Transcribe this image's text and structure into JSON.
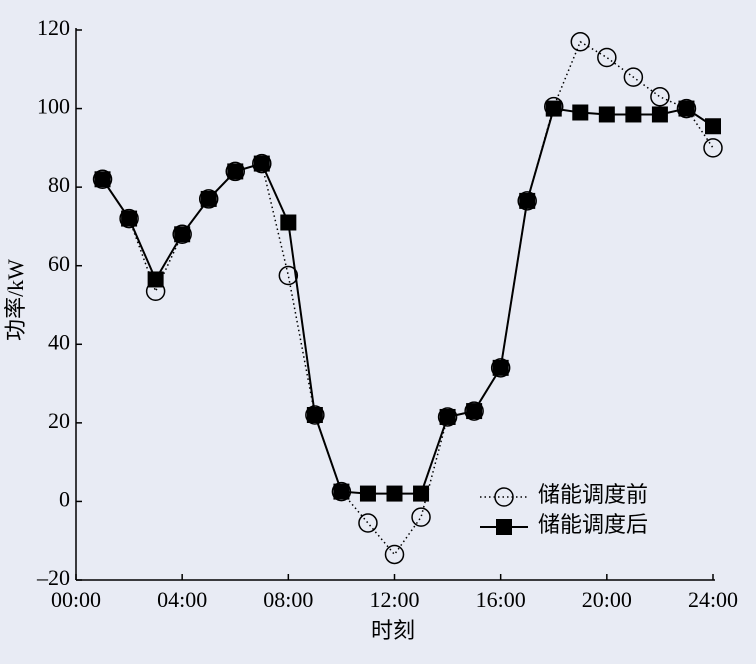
{
  "chart_data": {
    "type": "line",
    "x_label": "时刻",
    "y_label": "功率/kW",
    "x": [
      1,
      2,
      3,
      4,
      5,
      6,
      7,
      8,
      9,
      10,
      11,
      12,
      13,
      14,
      15,
      16,
      17,
      18,
      19,
      20,
      21,
      22,
      23,
      24
    ],
    "series": [
      {
        "name": "储能调度前",
        "color": "#000000",
        "marker": "circle",
        "line": "dotted",
        "values": [
          82,
          72,
          53.5,
          68,
          77,
          84,
          86,
          57.5,
          22,
          2.5,
          -5.5,
          -13.5,
          -4,
          21.5,
          23,
          34,
          76.5,
          100.5,
          117,
          113,
          108,
          103,
          100,
          90
        ]
      },
      {
        "name": "储能调度后",
        "color": "#000000",
        "marker": "square",
        "line": "solid",
        "values": [
          82,
          72,
          56.5,
          68,
          77,
          84,
          86,
          71,
          22,
          2.5,
          2,
          2,
          2,
          21.5,
          23,
          34,
          76.5,
          100,
          99,
          98.5,
          98.5,
          98.5,
          100,
          95.5
        ]
      }
    ],
    "xlim": [
      0,
      24
    ],
    "xticks": [
      {
        "value": 0,
        "label": "00:00"
      },
      {
        "value": 4,
        "label": "04:00"
      },
      {
        "value": 8,
        "label": "08:00"
      },
      {
        "value": 12,
        "label": "12:00"
      },
      {
        "value": 16,
        "label": "16:00"
      },
      {
        "value": 20,
        "label": "20:00"
      },
      {
        "value": 24,
        "label": "24:00"
      }
    ],
    "ylim": [
      -20,
      120
    ],
    "yticks": [
      {
        "value": -20,
        "label": "–20"
      },
      0,
      20,
      40,
      60,
      80,
      100,
      120
    ],
    "legend": "lower-right"
  }
}
